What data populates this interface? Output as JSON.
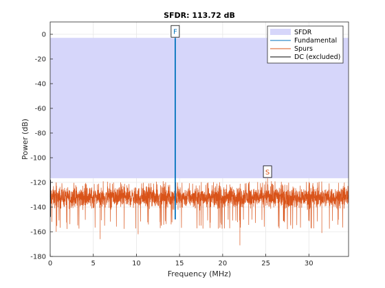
{
  "chart_data": {
    "type": "line",
    "title": "SFDR: 113.72 dB",
    "xlabel": "Frequency (MHz)",
    "ylabel": "Power (dB)",
    "xlim": [
      0,
      34.6
    ],
    "ylim": [
      -180,
      10
    ],
    "x_ticks": [
      0,
      5,
      10,
      15,
      20,
      25,
      30
    ],
    "y_ticks": [
      0,
      -20,
      -40,
      -60,
      -80,
      -100,
      -120,
      -140,
      -160,
      -180
    ],
    "x_tick_labels": [
      "0",
      "5",
      "10",
      "15",
      "20",
      "25",
      "30"
    ],
    "y_tick_labels": [
      "0",
      "-20",
      "-40",
      "-60",
      "-80",
      "-100",
      "-120",
      "-140",
      "-160",
      "-180"
    ],
    "grid": true,
    "legend_position": "top-right",
    "legend": [
      "SFDR",
      "Fundamental",
      "Spurs",
      "DC (excluded)"
    ],
    "sfdr_band": {
      "top_db": -2.9,
      "bottom_db": -116.6,
      "color": "#d6d6fa"
    },
    "fundamental": {
      "frequency_mhz": 14.5,
      "power_db": -2.9,
      "marker": "F",
      "color": "#0072bd"
    },
    "max_spur": {
      "frequency_mhz": 25.2,
      "power_db": -116.6,
      "marker": "S",
      "color": "#d95319"
    },
    "dc": {
      "frequency_mhz": 0,
      "color": "#000000"
    },
    "noise_floor": {
      "mean_db": -132,
      "typical_min_db": -150,
      "peak_db": -119,
      "deepest_db": -171
    }
  }
}
